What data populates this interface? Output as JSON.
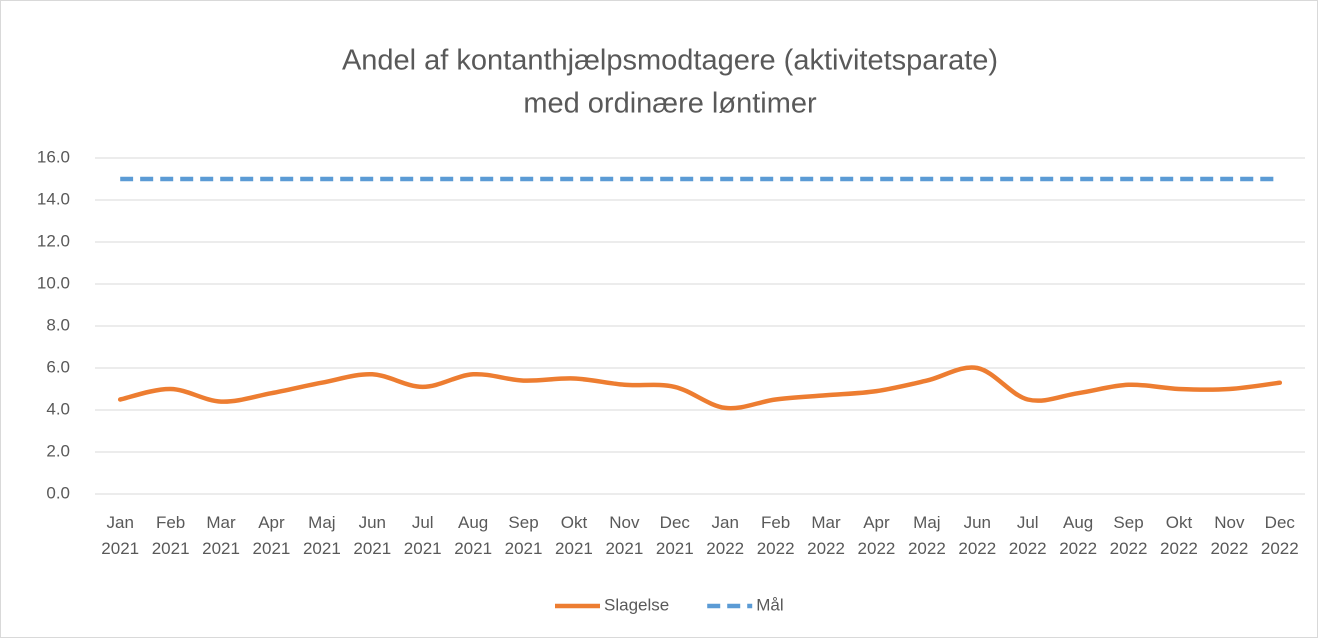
{
  "chart_data": {
    "type": "line",
    "title": [
      "Andel af kontanthjælpsmodtagere (aktivitetsparate)",
      "med ordinære løntimer"
    ],
    "categories": [
      "Jan 2021",
      "Feb 2021",
      "Mar 2021",
      "Apr 2021",
      "Maj 2021",
      "Jun 2021",
      "Jul 2021",
      "Aug 2021",
      "Sep 2021",
      "Okt 2021",
      "Nov 2021",
      "Dec 2021",
      "Jan 2022",
      "Feb 2022",
      "Mar 2022",
      "Apr 2022",
      "Maj 2022",
      "Jun 2022",
      "Jul 2022",
      "Aug 2022",
      "Sep 2022",
      "Okt 2022",
      "Nov 2022",
      "Dec 2022"
    ],
    "series": [
      {
        "name": "Slagelse",
        "color": "#ed7d31",
        "dash": false,
        "values": [
          4.5,
          5.0,
          4.4,
          4.8,
          5.3,
          5.7,
          5.1,
          5.7,
          5.4,
          5.5,
          5.2,
          5.1,
          4.1,
          4.5,
          4.7,
          4.9,
          5.4,
          6.0,
          4.5,
          4.8,
          5.2,
          5.0,
          5.0,
          5.3
        ]
      },
      {
        "name": "Mål",
        "color": "#5b9bd5",
        "dash": true,
        "values": [
          15,
          15,
          15,
          15,
          15,
          15,
          15,
          15,
          15,
          15,
          15,
          15,
          15,
          15,
          15,
          15,
          15,
          15,
          15,
          15,
          15,
          15,
          15,
          15
        ]
      }
    ],
    "ylim": [
      0,
      16
    ],
    "yticks": [
      {
        "value": 0,
        "label": "0.0"
      },
      {
        "value": 2,
        "label": "2.0"
      },
      {
        "value": 4,
        "label": "4.0"
      },
      {
        "value": 6,
        "label": "6.0"
      },
      {
        "value": 8,
        "label": "8.0"
      },
      {
        "value": 10,
        "label": "10.0"
      },
      {
        "value": 12,
        "label": "12.0"
      },
      {
        "value": 14,
        "label": "14.0"
      },
      {
        "value": 16,
        "label": "16.0"
      }
    ],
    "grid": true,
    "legend": "bottom"
  }
}
